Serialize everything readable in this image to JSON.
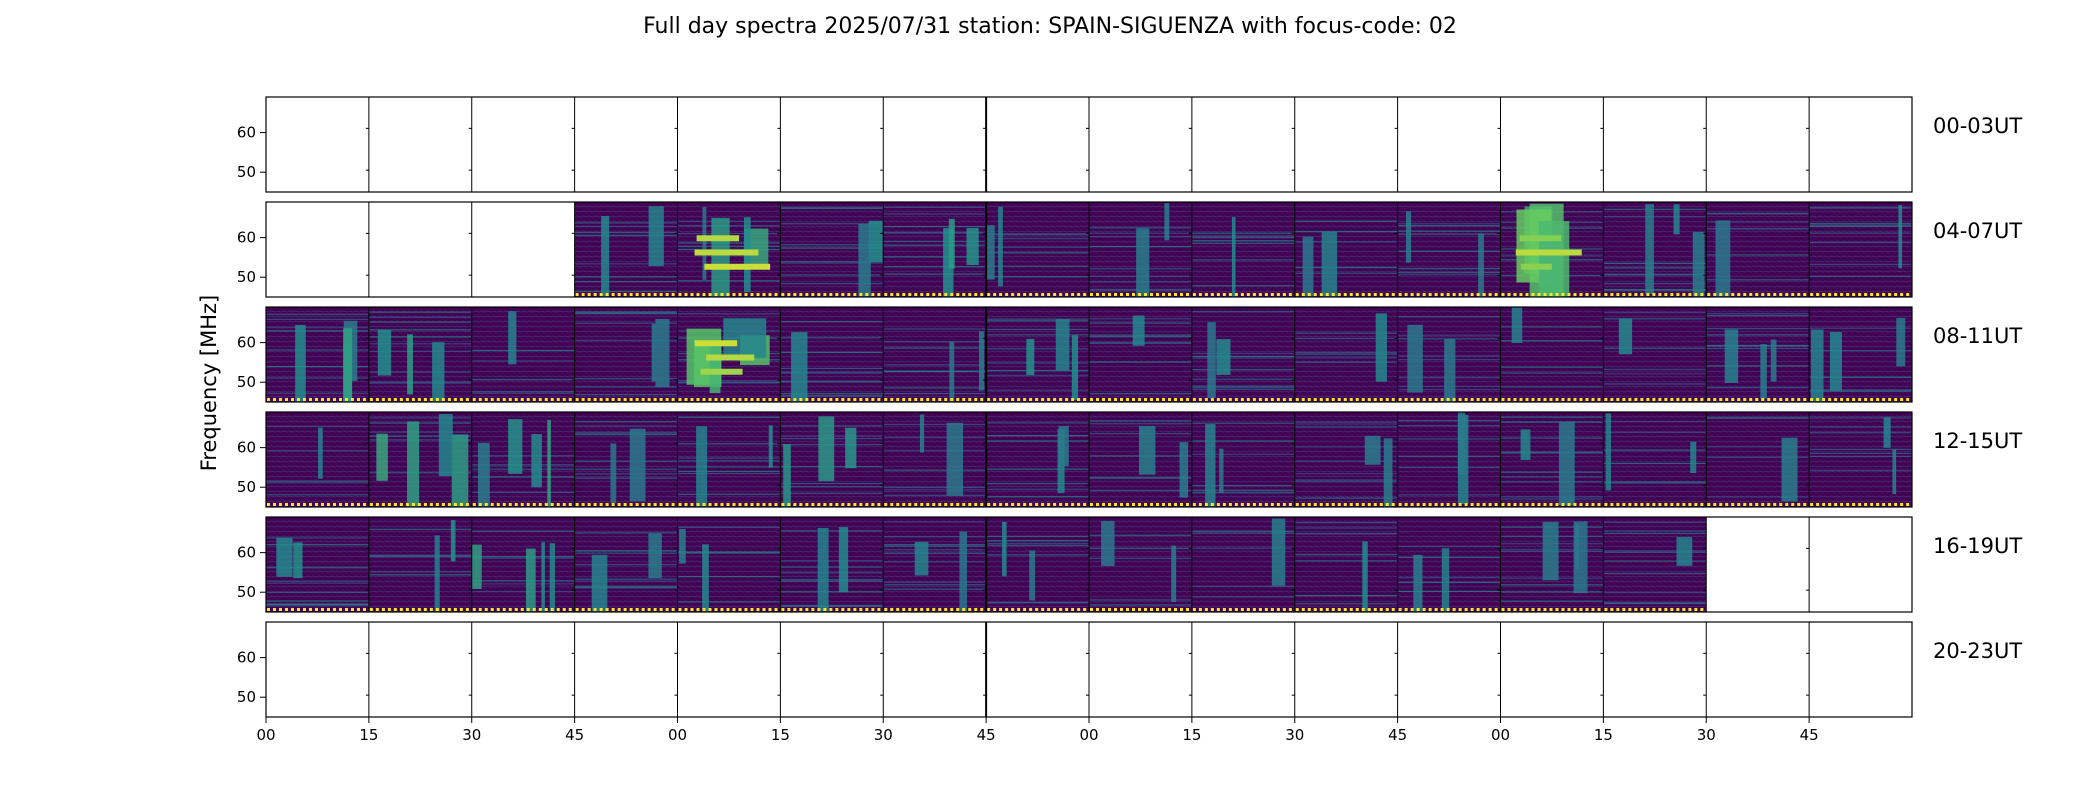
{
  "chart_data": {
    "type": "heatmap",
    "title": "Full day spectra 2025/07/31 station: SPAIN-SIGUENZA with focus-code: 02",
    "ylabel": "Frequency [MHz]",
    "xlabel": "",
    "ylim": [
      45,
      69
    ],
    "yticks": [
      50,
      60
    ],
    "xtick_labels": [
      "00",
      "15",
      "30",
      "45",
      "00",
      "15",
      "30",
      "45",
      "00",
      "15",
      "30",
      "45",
      "00",
      "15",
      "30",
      "45"
    ],
    "colormap": "viridis",
    "colormap_colors": [
      "#440154",
      "#3b528b",
      "#21908d",
      "#5dc963",
      "#fde725"
    ],
    "rows": [
      {
        "label": "00-03UT",
        "cells": [
          0,
          0,
          0,
          0,
          0,
          0,
          0,
          0,
          0,
          0,
          0,
          0,
          0,
          0,
          0,
          0
        ],
        "intensity": [
          0,
          0,
          0,
          0,
          0,
          0,
          0,
          0,
          0,
          0,
          0,
          0,
          0,
          0,
          0,
          0
        ]
      },
      {
        "label": "04-07UT",
        "cells": [
          0,
          0,
          0,
          1,
          1,
          1,
          1,
          1,
          1,
          1,
          1,
          1,
          1,
          1,
          1,
          1
        ],
        "intensity": [
          0,
          0,
          0,
          0.12,
          0.55,
          0.3,
          0.35,
          0.12,
          0.12,
          0.15,
          0.12,
          0.1,
          0.65,
          0.12,
          0.1,
          0.15
        ]
      },
      {
        "label": "08-11UT",
        "cells": [
          1,
          1,
          1,
          1,
          1,
          1,
          1,
          1,
          1,
          1,
          1,
          1,
          1,
          1,
          1,
          1
        ],
        "intensity": [
          0.3,
          0.35,
          0.15,
          0.1,
          0.6,
          0.12,
          0.1,
          0.2,
          0.1,
          0.25,
          0.12,
          0.12,
          0.15,
          0.15,
          0.12,
          0.15
        ]
      },
      {
        "label": "12-15UT",
        "cells": [
          1,
          1,
          1,
          1,
          1,
          1,
          1,
          1,
          1,
          1,
          1,
          1,
          1,
          1,
          1,
          1
        ],
        "intensity": [
          0.12,
          0.35,
          0.3,
          0.12,
          0.15,
          0.25,
          0.12,
          0.15,
          0.12,
          0.15,
          0.12,
          0.12,
          0.12,
          0.12,
          0.12,
          0.12
        ]
      },
      {
        "label": "16-19UT",
        "cells": [
          1,
          1,
          1,
          1,
          1,
          1,
          1,
          1,
          1,
          1,
          1,
          1,
          1,
          1,
          0,
          0
        ],
        "intensity": [
          0.25,
          0.2,
          0.35,
          0.12,
          0.15,
          0.2,
          0.15,
          0.15,
          0.15,
          0.2,
          0.2,
          0.12,
          0.12,
          0.2,
          0,
          0
        ]
      },
      {
        "label": "20-23UT",
        "cells": [
          0,
          0,
          0,
          0,
          0,
          0,
          0,
          0,
          0,
          0,
          0,
          0,
          0,
          0,
          0,
          0
        ],
        "intensity": [
          0,
          0,
          0,
          0,
          0,
          0,
          0,
          0,
          0,
          0,
          0,
          0,
          0,
          0,
          0,
          0
        ]
      }
    ]
  }
}
